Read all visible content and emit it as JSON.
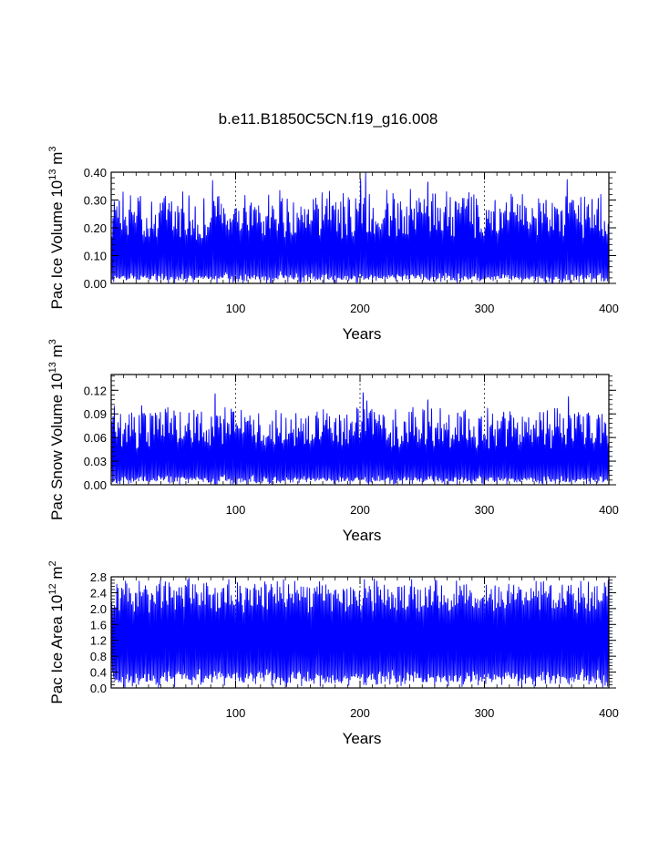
{
  "title": "b.e11.B1850C5CN.f19_g16.008",
  "colors": {
    "series": "#0000ff",
    "axes": "#000000",
    "grid": "#000000"
  },
  "chart_data": [
    {
      "type": "line",
      "ylabel": "Pac Ice Volume 10",
      "ylabel_exp": "13",
      "ylabel_unit": "m",
      "ylabel_unit_exp": "3",
      "xlabel": "Years",
      "xlim": [
        0,
        400
      ],
      "ylim": [
        0,
        0.4
      ],
      "yticks": [
        0.0,
        0.1,
        0.2,
        0.3,
        0.4
      ],
      "ytick_labels": [
        "0.00",
        "0.10",
        "0.20",
        "0.30",
        "0.40"
      ],
      "xticks": [
        100,
        200,
        300,
        400
      ],
      "xtick_labels": [
        "100",
        "200",
        "300",
        "400"
      ],
      "vgrid": [
        100,
        200,
        300
      ],
      "seasonal": {
        "min_base": 0.01,
        "min_var": 0.02,
        "max_base": 0.22,
        "max_var": 0.08,
        "max_cap": 0.395
      },
      "spikes": [
        [
          82,
          0.36
        ],
        [
          201,
          0.395
        ],
        [
          205,
          0.38
        ],
        [
          255,
          0.375
        ],
        [
          367,
          0.37
        ],
        [
          392,
          0.325
        ]
      ]
    },
    {
      "type": "line",
      "ylabel": "Pac Snow Volume 10",
      "ylabel_exp": "13",
      "ylabel_unit": "m",
      "ylabel_unit_exp": "3",
      "xlabel": "Years",
      "xlim": [
        0,
        400
      ],
      "ylim": [
        0,
        0.14
      ],
      "yticks": [
        0.0,
        0.03,
        0.06,
        0.09,
        0.12
      ],
      "ytick_labels": [
        "0.00",
        "0.03",
        "0.06",
        "0.09",
        "0.12"
      ],
      "xticks": [
        100,
        200,
        300,
        400
      ],
      "xtick_labels": [
        "100",
        "200",
        "300",
        "400"
      ],
      "vgrid": [
        100,
        200,
        300
      ],
      "seasonal": {
        "min_base": 0.003,
        "min_var": 0.006,
        "max_base": 0.065,
        "max_var": 0.025,
        "max_cap": 0.125
      },
      "spikes": [
        [
          84,
          0.115
        ],
        [
          203,
          0.12
        ],
        [
          206,
          0.11
        ],
        [
          255,
          0.11
        ],
        [
          368,
          0.115
        ]
      ]
    },
    {
      "type": "line",
      "ylabel": "Pac Ice Area 10",
      "ylabel_exp": "12",
      "ylabel_unit": "m",
      "ylabel_unit_exp": "2",
      "xlabel": "Years",
      "xlim": [
        0,
        400
      ],
      "ylim": [
        0,
        2.8
      ],
      "yticks": [
        0.0,
        0.4,
        0.8,
        1.2,
        1.6,
        2.0,
        2.4,
        2.8
      ],
      "ytick_labels": [
        "0.0",
        "0.4",
        "0.8",
        "1.2",
        "1.6",
        "2.0",
        "2.4",
        "2.8"
      ],
      "xticks": [
        100,
        200,
        300,
        400
      ],
      "xtick_labels": [
        "100",
        "200",
        "300",
        "400"
      ],
      "vgrid": [
        100,
        200,
        300
      ],
      "seasonal": {
        "min_base": 0.1,
        "min_var": 0.3,
        "max_base": 2.2,
        "max_var": 0.35,
        "max_cap": 2.78
      },
      "spikes": [
        [
          168,
          2.75
        ],
        [
          212,
          2.72
        ],
        [
          378,
          2.75
        ]
      ]
    }
  ]
}
